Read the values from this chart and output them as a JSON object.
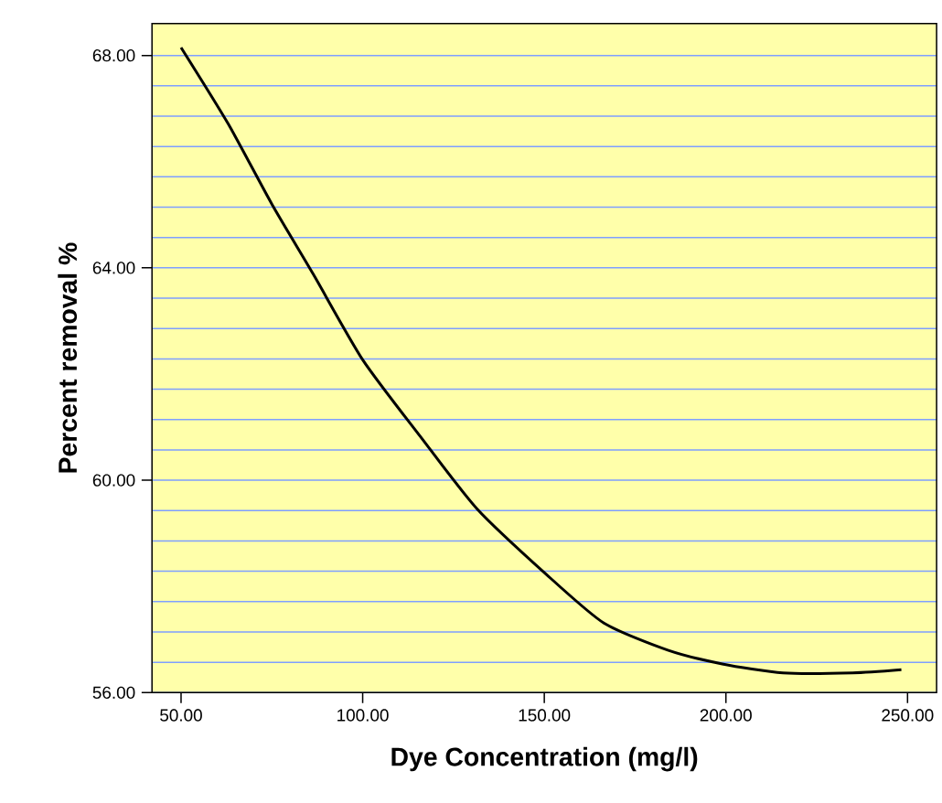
{
  "chart_data": {
    "type": "line",
    "xlabel": "Dye Concentration (mg/l)",
    "ylabel": "Percent removal %",
    "x": [
      50,
      63,
      75,
      86.4,
      100,
      115.8,
      131.5,
      150.5,
      166.4,
      184,
      199,
      215.7,
      234.9,
      248.3
    ],
    "series": [
      {
        "color": "#000000",
        "values": [
          68.15,
          66.71,
          65.2,
          63.88,
          62.27,
          60.83,
          59.46,
          58.23,
          57.31,
          56.8,
          56.54,
          56.37,
          56.37,
          56.43
        ]
      }
    ],
    "xlim": [
      42,
      258
    ],
    "ylim": [
      56,
      68.6
    ],
    "xticks": [
      {
        "value": 50,
        "label": "50.00"
      },
      {
        "value": 100,
        "label": "100.00"
      },
      {
        "value": 150,
        "label": "150.00"
      },
      {
        "value": 200,
        "label": "200.00"
      },
      {
        "value": 250,
        "label": "250.00"
      }
    ],
    "yticks": [
      {
        "value": 56,
        "label": "56.00"
      },
      {
        "value": 60,
        "label": "60.00"
      },
      {
        "value": 64,
        "label": "64.00"
      },
      {
        "value": 68,
        "label": "68.00"
      }
    ],
    "grid": "y",
    "marker": "none",
    "line_style": "solid"
  }
}
